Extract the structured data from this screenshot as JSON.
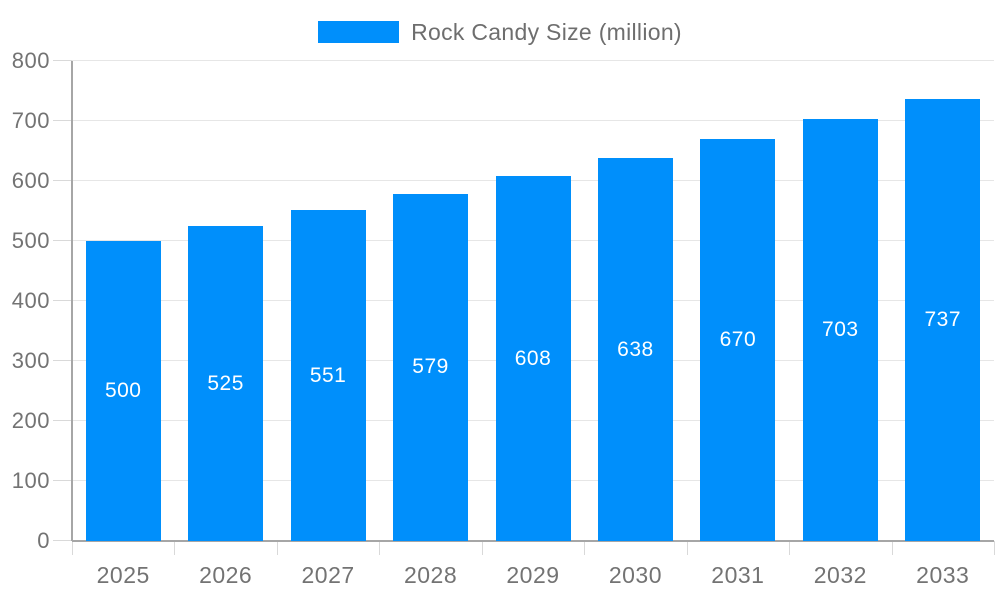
{
  "legend": {
    "label": "Rock Candy Size (million)"
  },
  "colors": {
    "bar": "#008FFB",
    "grid": "#e6e6e6",
    "axis": "#a6a6a6",
    "tick": "#d9d9d9",
    "axis_label": "#737373",
    "legend_label": "#6e6e6e",
    "value_label": "#ffffff",
    "background": "#ffffff"
  },
  "chart_data": {
    "type": "bar",
    "title": "",
    "categories": [
      "2025",
      "2026",
      "2027",
      "2028",
      "2029",
      "2030",
      "2031",
      "2032",
      "2033"
    ],
    "series": [
      {
        "name": "Rock Candy Size (million)",
        "values": [
          500,
          525,
          551,
          579,
          608,
          638,
          670,
          703,
          737
        ]
      }
    ],
    "xlabel": "",
    "ylabel": "",
    "ylim": [
      0,
      800
    ],
    "ytick_step": 100,
    "yticks": [
      0,
      100,
      200,
      300,
      400,
      500,
      600,
      700,
      800
    ],
    "grid": true,
    "legend_position": "top",
    "data_labels": "inside-center"
  }
}
